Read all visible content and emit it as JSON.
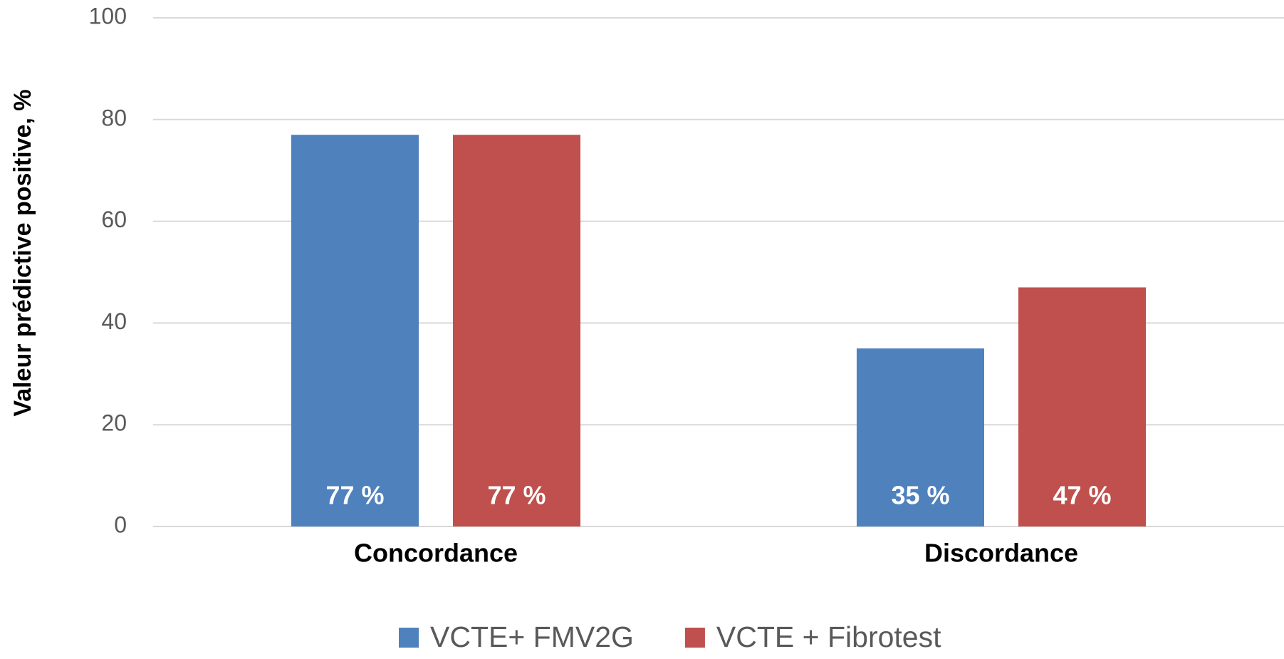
{
  "chart_data": {
    "type": "bar",
    "y_label": "Valeur prédictive positive, %",
    "categories": [
      "Concordance",
      "Discordance"
    ],
    "series": [
      {
        "name": "VCTE+ FMV2G",
        "color": "#4f81bd",
        "values": [
          77,
          35
        ],
        "value_labels": [
          "77 %",
          "35 %"
        ]
      },
      {
        "name": "VCTE + Fibrotest",
        "color": "#c0504d",
        "values": [
          77,
          47
        ],
        "value_labels": [
          "77 %",
          "47 %"
        ]
      }
    ],
    "ylim": [
      0,
      100
    ],
    "yticks": [
      0,
      20,
      40,
      60,
      80,
      100
    ],
    "grid": true,
    "legend": "bottom"
  }
}
